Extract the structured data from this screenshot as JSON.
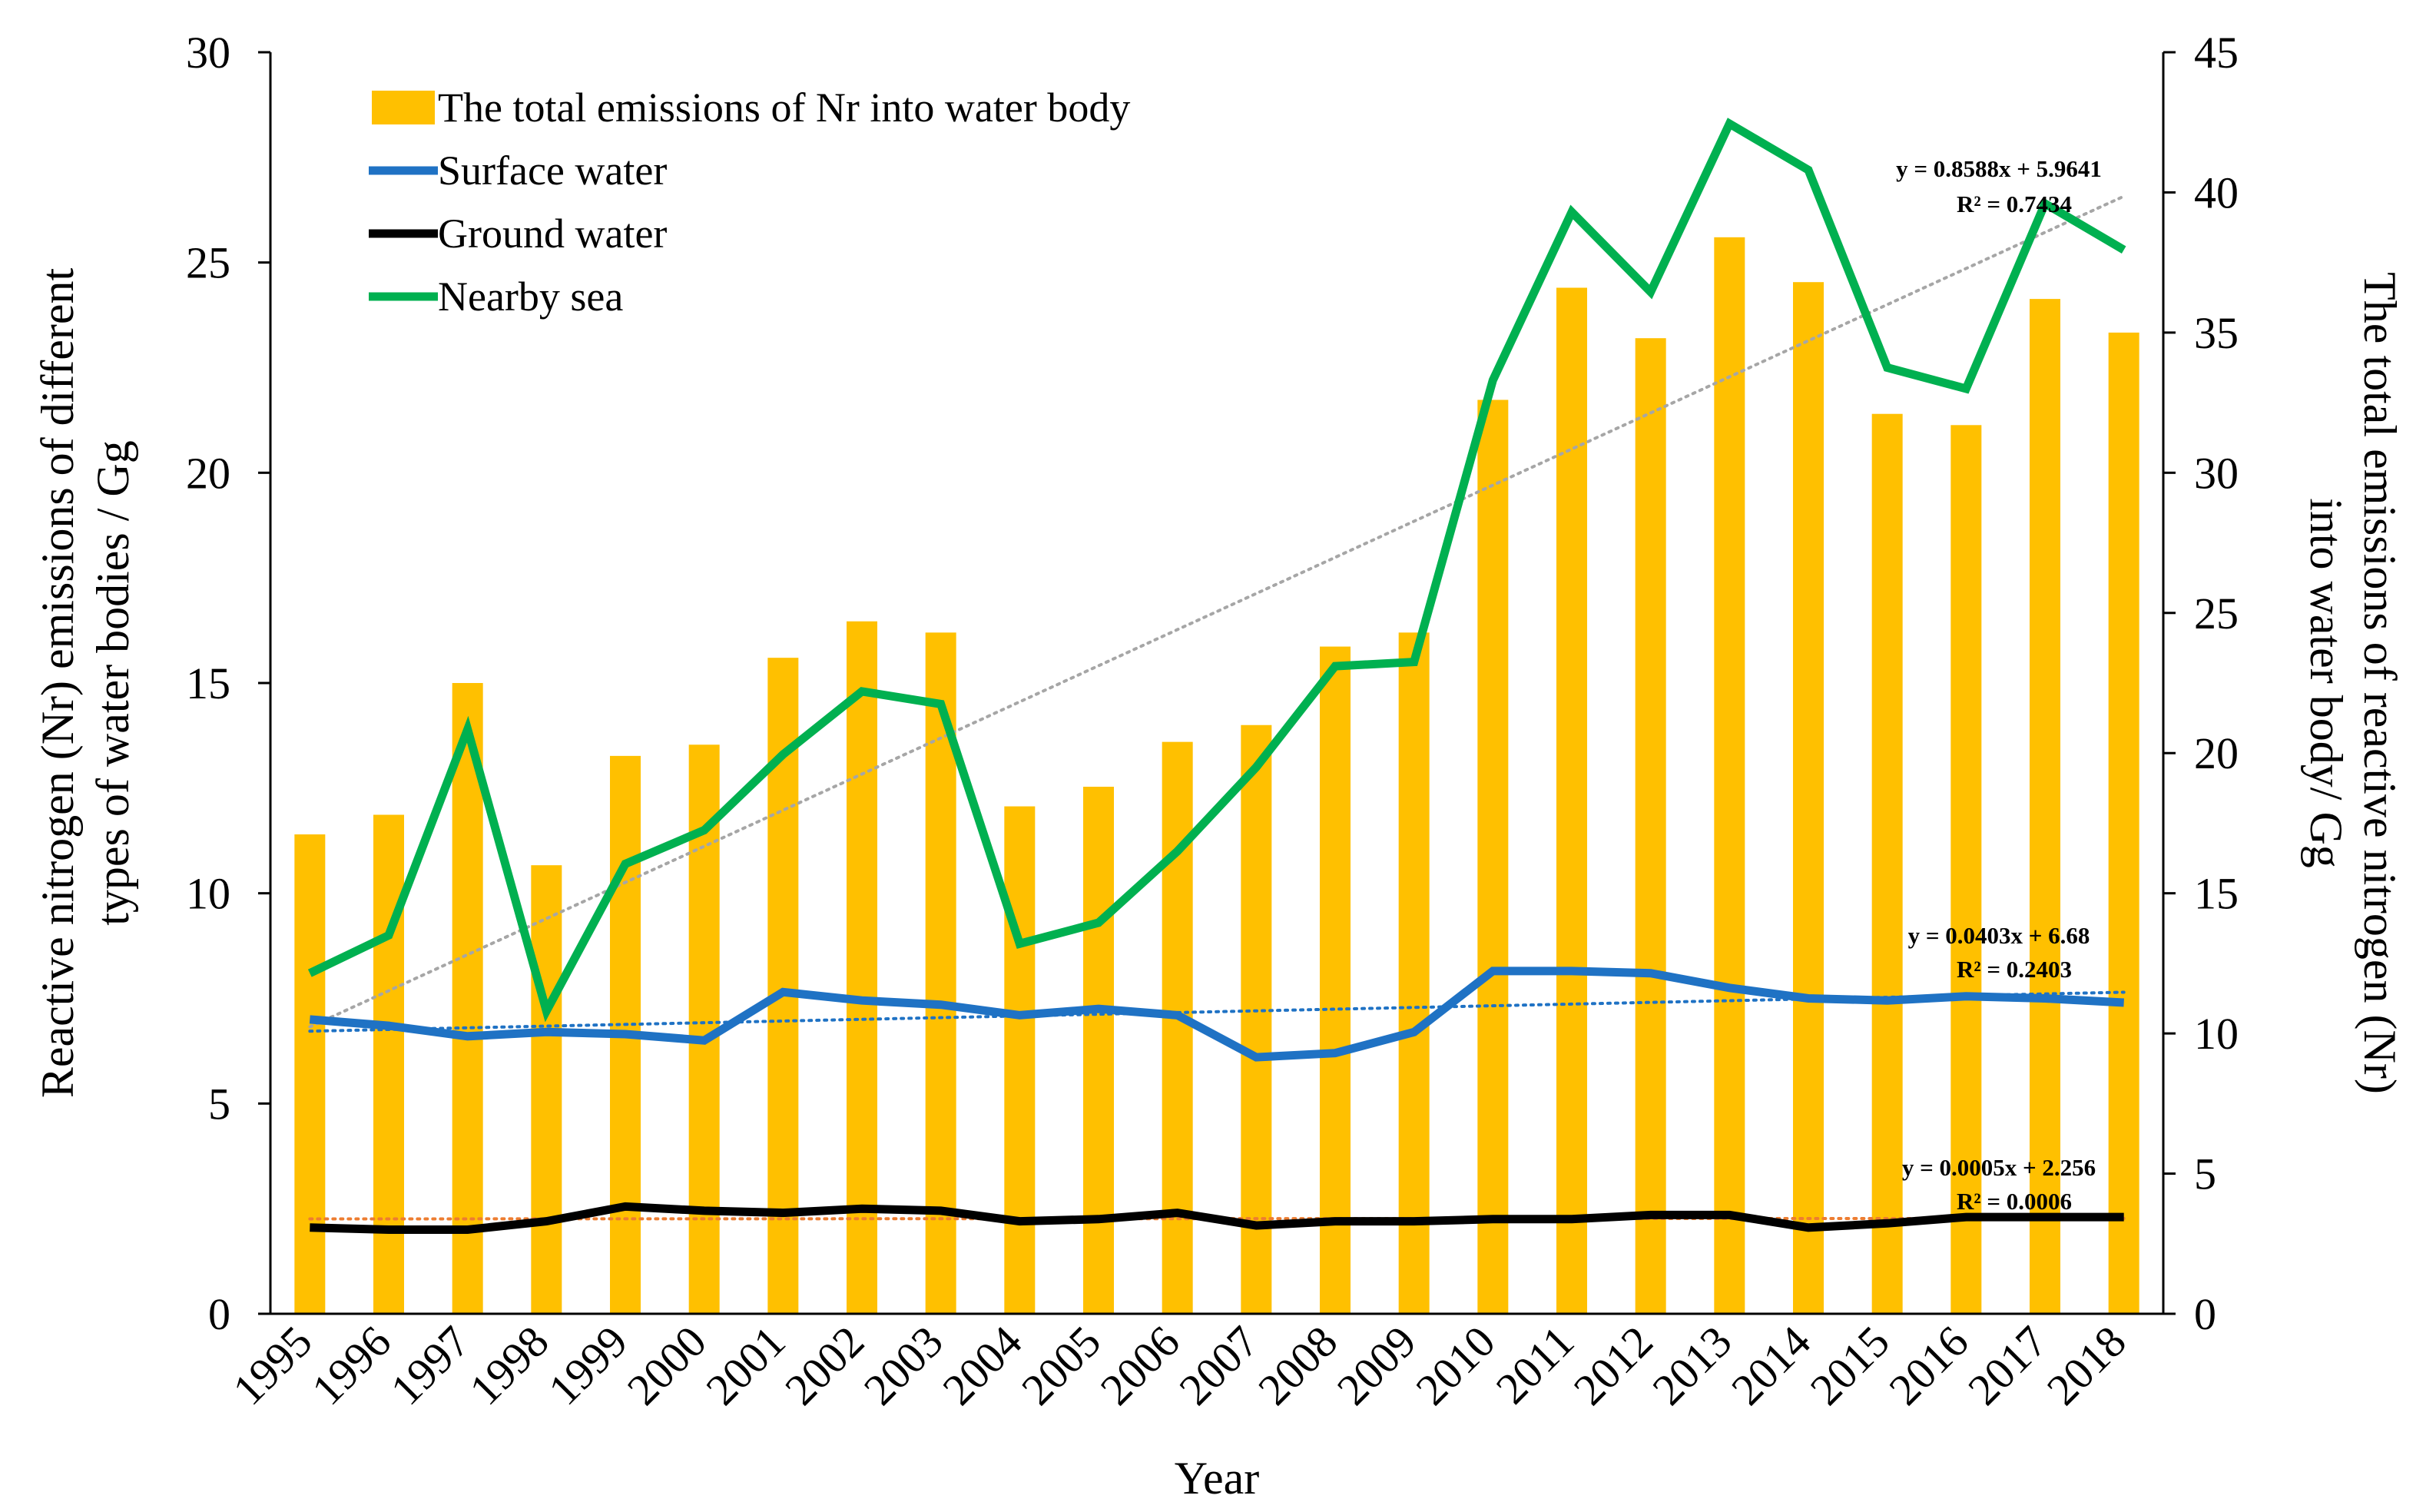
{
  "chart_data": {
    "type": "bar",
    "categories": [
      "1995",
      "1996",
      "1997",
      "1998",
      "1999",
      "2000",
      "2001",
      "2002",
      "2003",
      "2004",
      "2005",
      "2006",
      "2007",
      "2008",
      "2009",
      "2010",
      "2011",
      "2012",
      "2013",
      "2014",
      "2015",
      "2016",
      "2017",
      "2018"
    ],
    "xlabel": "Year",
    "ylabel_left": "Reactive nitrogen (Nr) emissions of different types of water bodies / Gg",
    "ylabel_left_lines": [
      "Reactive nitrogen (Nr) emissions of different",
      "types of water bodies / Gg"
    ],
    "ylabel_right_lines": [
      "The total emissions of reactive nitrogen (Nr)",
      "into water body/ Gg"
    ],
    "ylim_left": [
      0,
      30
    ],
    "ylim_right": [
      0,
      45
    ],
    "yticks_left": [
      0,
      5,
      10,
      15,
      20,
      25,
      30
    ],
    "yticks_right": [
      0,
      5,
      10,
      15,
      20,
      25,
      30,
      35,
      40,
      45
    ],
    "grid": false,
    "legend_position": "top-left",
    "series": [
      {
        "name": "The total emissions of Nr into water body",
        "kind": "bar",
        "axis": "right",
        "color": "#FFC000",
        "values": [
          17.1,
          17.8,
          22.5,
          16.0,
          19.9,
          20.3,
          23.4,
          24.7,
          24.3,
          18.1,
          18.8,
          20.4,
          21.0,
          23.8,
          24.3,
          32.6,
          36.6,
          34.8,
          38.4,
          36.8,
          32.1,
          31.7,
          36.2,
          35.0
        ]
      },
      {
        "name": "Surface water",
        "kind": "line",
        "axis": "left",
        "color": "#1F72C4",
        "values": [
          7.0,
          6.85,
          6.6,
          6.7,
          6.65,
          6.5,
          7.65,
          7.45,
          7.35,
          7.1,
          7.25,
          7.1,
          6.1,
          6.2,
          6.7,
          8.15,
          8.15,
          8.1,
          7.75,
          7.5,
          7.45,
          7.55,
          7.5,
          7.4
        ]
      },
      {
        "name": "Ground water",
        "kind": "line",
        "axis": "left",
        "color": "#000000",
        "values": [
          2.05,
          2.0,
          2.0,
          2.2,
          2.55,
          2.45,
          2.4,
          2.5,
          2.45,
          2.2,
          2.25,
          2.4,
          2.1,
          2.2,
          2.2,
          2.25,
          2.25,
          2.35,
          2.35,
          2.05,
          2.15,
          2.3,
          2.3,
          2.3
        ]
      },
      {
        "name": "Nearby sea",
        "kind": "line",
        "axis": "left",
        "color": "#00B050",
        "values": [
          8.1,
          9.0,
          13.9,
          7.2,
          10.7,
          11.5,
          13.3,
          14.8,
          14.5,
          8.8,
          9.3,
          11.0,
          13.0,
          15.4,
          15.5,
          22.2,
          26.2,
          24.3,
          28.3,
          27.2,
          22.5,
          22.0,
          26.4,
          25.3
        ]
      }
    ],
    "trendlines": [
      {
        "series": "Nearby sea",
        "color": "#A6A6A6",
        "slope": 0.8588,
        "intercept": 5.9641,
        "equation": "y = 0.8588x + 5.9641",
        "r2": "R² = 0.7434"
      },
      {
        "series": "Surface water",
        "color": "#1F72C4",
        "slope": 0.0403,
        "intercept": 6.68,
        "equation": "y = 0.0403x + 6.68",
        "r2": "R² = 0.2403"
      },
      {
        "series": "Ground water",
        "color": "#ED7D31",
        "slope": 0.0005,
        "intercept": 2.256,
        "equation": "y = 0.0005x + 2.256",
        "r2": "R² = 0.0006"
      }
    ]
  }
}
